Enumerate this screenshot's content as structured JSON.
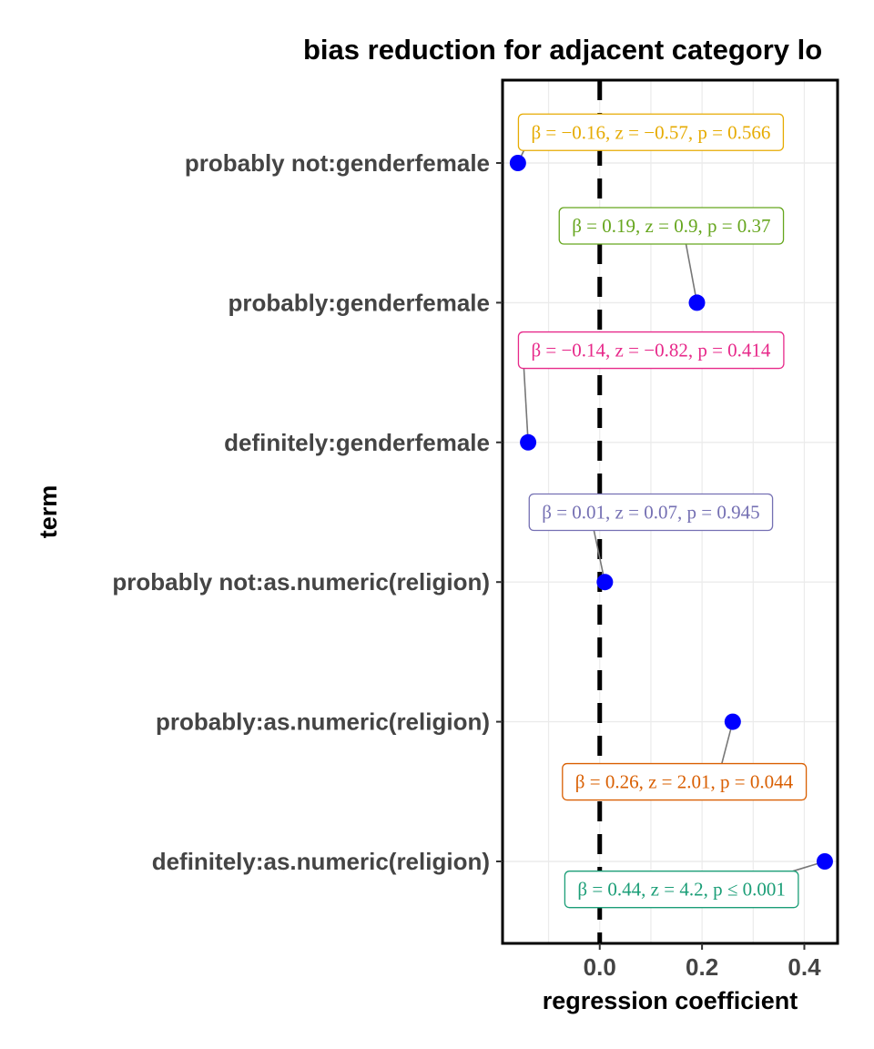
{
  "chart_data": {
    "type": "scatter",
    "title": "bias reduction for adjacent category lo",
    "xlabel": "regression coefficient",
    "ylabel": "term",
    "xlim": [
      -0.19,
      0.465
    ],
    "x_ticks": [
      {
        "value": 0.0,
        "label": "0.0"
      },
      {
        "value": 0.2,
        "label": "0.2"
      },
      {
        "value": 0.4,
        "label": "0.4"
      }
    ],
    "reference_line": {
      "x": 0,
      "style": "dashed"
    },
    "grid": true,
    "point_color": "#0000ff",
    "terms": [
      {
        "term": "probably not:genderfemale",
        "estimate": -0.16,
        "label": "β = −0.16,  z = −0.57,  p = 0.566",
        "label_color": "#E6AB02",
        "label_x": 0.1,
        "label_row": -0.22
      },
      {
        "term": "probably:genderfemale",
        "estimate": 0.19,
        "label": "β = 0.19,  z = 0.9,  p = 0.37",
        "label_color": "#66A61E",
        "label_x": 0.14,
        "label_row": 0.45
      },
      {
        "term": "definitely:genderfemale",
        "estimate": -0.14,
        "label": "β = −0.14,  z = −0.82,  p = 0.414",
        "label_color": "#E7298A",
        "label_x": 0.1,
        "label_row": 1.34
      },
      {
        "term": "probably not:as.numeric(religion)",
        "estimate": 0.01,
        "label": "β = 0.01,  z = 0.07,  p = 0.945",
        "label_color": "#7570B3",
        "label_x": 0.1,
        "label_row": 2.5
      },
      {
        "term": "probably:as.numeric(religion)",
        "estimate": 0.26,
        "label": "β = 0.26,  z = 2.01,  p = 0.044",
        "label_color": "#D95F02",
        "label_x": 0.165,
        "label_row": 4.43
      },
      {
        "term": "definitely:as.numeric(religion)",
        "estimate": 0.44,
        "label": "β = 0.44,  z = 4.2,  p ≤ 0.001",
        "label_color": "#1B9E77",
        "label_x": 0.16,
        "label_row": 5.2
      }
    ]
  }
}
